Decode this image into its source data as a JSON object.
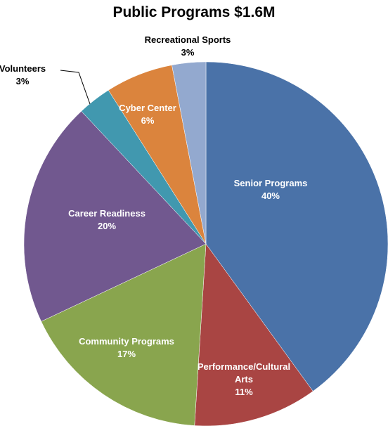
{
  "chart_data": {
    "type": "pie",
    "title": "Public Programs $1.6M",
    "categories": [
      "Senior Programs",
      "Performance/Cultural Arts",
      "Community Programs",
      "Career Readiness",
      "Volunteers",
      "Cyber Center",
      "Recreational Sports"
    ],
    "values": [
      40,
      11,
      17,
      20,
      3,
      6,
      3
    ],
    "value_labels": [
      "40%",
      "11%",
      "17%",
      "20%",
      "3%",
      "6%",
      "3%"
    ],
    "colors": [
      "#4a72a8",
      "#a94543",
      "#89a54e",
      "#71588f",
      "#4198af",
      "#db843d",
      "#93a9cf"
    ]
  }
}
